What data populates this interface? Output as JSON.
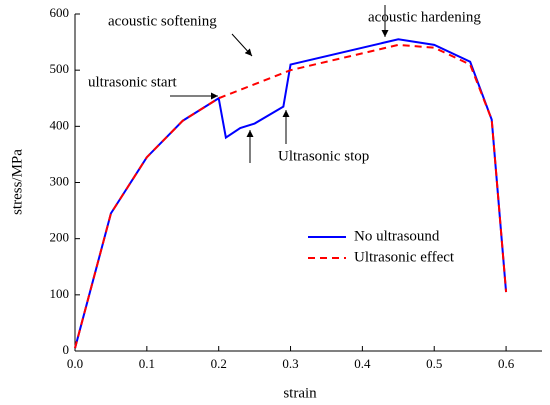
{
  "chart_data": {
    "type": "line",
    "xlabel": "strain",
    "ylabel": "stress/MPa",
    "xlim": [
      0,
      0.65
    ],
    "ylim": [
      0,
      600
    ],
    "xticks": [
      {
        "value": 0,
        "label": "0.0"
      },
      0.1,
      0.2,
      0.3,
      0.4,
      0.5,
      0.6
    ],
    "yticks": [
      0,
      100,
      200,
      300,
      400,
      500,
      600
    ],
    "grid": false,
    "legend": "center right",
    "series": [
      {
        "name": "No ultrasound",
        "color": "#0000ff",
        "dash": false,
        "x": [
          0,
          0.05,
          0.1,
          0.15,
          0.2,
          0.21,
          0.23,
          0.25,
          0.29,
          0.3,
          0.45,
          0.5,
          0.55,
          0.58,
          0.6
        ],
        "values": [
          5,
          245,
          345,
          410,
          450,
          380,
          397,
          405,
          435,
          510,
          555,
          545,
          515,
          412,
          105
        ]
      },
      {
        "name": "Ultrasonic effect",
        "color": "#ff0000",
        "dash": true,
        "x": [
          0,
          0.05,
          0.1,
          0.15,
          0.2,
          0.3,
          0.45,
          0.5,
          0.55,
          0.58,
          0.6
        ],
        "values": [
          5,
          245,
          345,
          410,
          450,
          500,
          545,
          540,
          510,
          412,
          105
        ]
      }
    ],
    "annotations": [
      "ultrasonic start",
      "acoustic softening",
      "acoustic hardening",
      "Ultrasonic stop"
    ]
  }
}
